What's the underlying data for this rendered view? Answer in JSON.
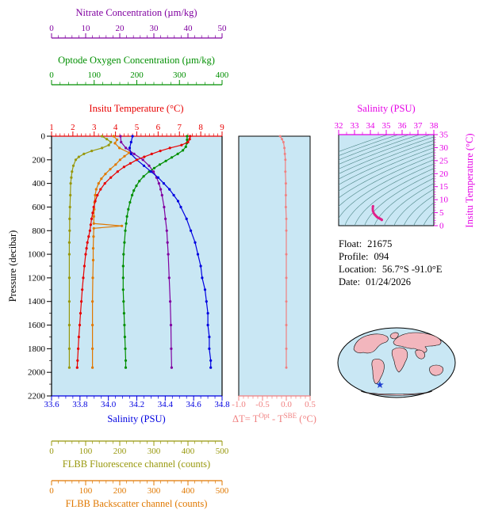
{
  "axes": {
    "nitrate": {
      "title": "Nitrate Concentration (µm/kg)",
      "color": "#8000a0",
      "min": 0,
      "max": 50,
      "ticks": [
        "0",
        "10",
        "20",
        "30",
        "40",
        "50"
      ]
    },
    "oxygen": {
      "title": "Optode Oxygen Concentration (µm/kg)",
      "color": "#008f00",
      "min": 0,
      "max": 400,
      "ticks": [
        "0",
        "100",
        "200",
        "300",
        "400"
      ]
    },
    "temperature": {
      "title": "Insitu Temperature (°C)",
      "color": "#e80000",
      "min": 1,
      "max": 9,
      "ticks": [
        "1",
        "2",
        "3",
        "4",
        "5",
        "6",
        "7",
        "8",
        "9"
      ]
    },
    "pressure": {
      "title": "Pressure (decibar)",
      "color": "#000000",
      "min": 0,
      "max": 2200,
      "ticks": [
        "0",
        "200",
        "400",
        "600",
        "800",
        "1000",
        "1200",
        "1400",
        "1600",
        "1800",
        "2000",
        "2200"
      ]
    },
    "salinity": {
      "title": "Salinity (PSU)",
      "color": "#0000e0",
      "min": 33.6,
      "max": 34.8,
      "ticks": [
        "33.6",
        "33.8",
        "34.0",
        "34.2",
        "34.4",
        "34.6",
        "34.8"
      ]
    },
    "fluorescence": {
      "title": "FLBB Fluorescence channel (counts)",
      "color": "#98980c",
      "min": 0,
      "max": 500,
      "ticks": [
        "0",
        "100",
        "200",
        "300",
        "400",
        "500"
      ]
    },
    "backscatter": {
      "title": "FLBB Backscatter channel (counts)",
      "color": "#e07800",
      "min": 0,
      "max": 500,
      "ticks": [
        "0",
        "100",
        "200",
        "300",
        "400",
        "500"
      ]
    },
    "delta_t": {
      "title_p1": "ΔT= T",
      "title_sup1": "Opt",
      "title_p2": " - T",
      "title_sup2": "SBE",
      "title_p3": " (°C)",
      "color": "#f08080",
      "min": -1.0,
      "max": 0.5,
      "ticks": [
        "-1.0",
        "-0.5",
        "0.0",
        "0.5"
      ]
    },
    "ts_salinity": {
      "title": "Salinity (PSU)",
      "color": "#e600e6",
      "min": 32,
      "max": 38,
      "ticks": [
        "32",
        "33",
        "34",
        "35",
        "36",
        "37",
        "38"
      ]
    },
    "ts_temperature": {
      "title": "Insitu Temperature (°C)",
      "color": "#e600e6",
      "min": 0,
      "max": 35,
      "ticks": [
        "0",
        "5",
        "10",
        "15",
        "20",
        "25",
        "30",
        "35"
      ]
    }
  },
  "info": {
    "float_label": "Float:",
    "float_value": "21675",
    "profile_label": "Profile:",
    "profile_value": "094",
    "location_label": "Location:",
    "location_value": "56.7°S -91.0°E",
    "date_label": "Date:",
    "date_value": "01/24/2026"
  },
  "map": {
    "star_color": "#2040d0",
    "land_color": "#f2b6bd",
    "ocean_color": "#c9e7f4",
    "outline_color": "#000000"
  },
  "chart_data": [
    {
      "type": "line",
      "title": "Profile plot: multiple variables vs pressure",
      "ylabel": "Pressure (decibar)",
      "ylim": [
        0,
        2200
      ],
      "plot_bg": "#c9e7f4",
      "y_axis": "pressure",
      "series": [
        {
          "name": "fluorescence",
          "axis": "fluorescence",
          "color": "#98980c",
          "points": [
            [
              0,
              148
            ],
            [
              25,
              162
            ],
            [
              50,
              174
            ],
            [
              75,
              168
            ],
            [
              100,
              148
            ],
            [
              125,
              118
            ],
            [
              150,
              95
            ],
            [
              175,
              80
            ],
            [
              200,
              71
            ],
            [
              250,
              64
            ],
            [
              300,
              60
            ],
            [
              350,
              58
            ],
            [
              400,
              56
            ],
            [
              500,
              55
            ],
            [
              600,
              54
            ],
            [
              700,
              53
            ],
            [
              800,
              53
            ],
            [
              900,
              52
            ],
            [
              1000,
              52
            ],
            [
              1200,
              52
            ],
            [
              1400,
              52
            ],
            [
              1600,
              52
            ],
            [
              1800,
              52
            ],
            [
              1960,
              52
            ]
          ]
        },
        {
          "name": "backscatter",
          "axis": "backscatter",
          "color": "#e07800",
          "points": [
            [
              0,
              182
            ],
            [
              30,
              192
            ],
            [
              60,
              186
            ],
            [
              100,
              199
            ],
            [
              140,
              228
            ],
            [
              170,
              214
            ],
            [
              200,
              201
            ],
            [
              240,
              188
            ],
            [
              280,
              172
            ],
            [
              320,
              158
            ],
            [
              360,
              146
            ],
            [
              400,
              138
            ],
            [
              450,
              131
            ],
            [
              500,
              128
            ],
            [
              560,
              126
            ],
            [
              620,
              125
            ],
            [
              680,
              124
            ],
            [
              740,
              124
            ],
            [
              760,
              206
            ],
            [
              780,
              124
            ],
            [
              850,
              123
            ],
            [
              950,
              122
            ],
            [
              1050,
              122
            ],
            [
              1200,
              121
            ],
            [
              1400,
              120
            ],
            [
              1600,
              120
            ],
            [
              1800,
              120
            ],
            [
              1960,
              120
            ]
          ]
        },
        {
          "name": "nitrate",
          "axis": "nitrate",
          "color": "#8000a0",
          "points": [
            [
              0,
              20.2
            ],
            [
              50,
              20.4
            ],
            [
              100,
              21.8
            ],
            [
              150,
              24.2
            ],
            [
              200,
              26.8
            ],
            [
              250,
              28.6
            ],
            [
              300,
              29.9
            ],
            [
              350,
              30.8
            ],
            [
              400,
              31.5
            ],
            [
              450,
              32.0
            ],
            [
              500,
              32.4
            ],
            [
              600,
              33.0
            ],
            [
              700,
              33.4
            ],
            [
              800,
              33.8
            ],
            [
              900,
              34.0
            ],
            [
              1000,
              34.2
            ],
            [
              1200,
              34.5
            ],
            [
              1400,
              34.8
            ],
            [
              1600,
              35.0
            ],
            [
              1800,
              35.1
            ],
            [
              1960,
              35.2
            ]
          ]
        },
        {
          "name": "oxygen",
          "axis": "oxygen",
          "color": "#008f00",
          "points": [
            [
              0,
              318
            ],
            [
              30,
              318
            ],
            [
              60,
              317
            ],
            [
              90,
              315
            ],
            [
              120,
              308
            ],
            [
              150,
              296
            ],
            [
              180,
              282
            ],
            [
              210,
              268
            ],
            [
              240,
              254
            ],
            [
              270,
              241
            ],
            [
              300,
              229
            ],
            [
              340,
              216
            ],
            [
              380,
              206
            ],
            [
              420,
              199
            ],
            [
              460,
              193
            ],
            [
              500,
              189
            ],
            [
              560,
              184
            ],
            [
              620,
              180
            ],
            [
              680,
              177
            ],
            [
              740,
              175
            ],
            [
              800,
              173
            ],
            [
              900,
              171
            ],
            [
              1000,
              169
            ],
            [
              1100,
              168
            ],
            [
              1200,
              168
            ],
            [
              1300,
              168
            ],
            [
              1400,
              169
            ],
            [
              1500,
              170
            ],
            [
              1600,
              171
            ],
            [
              1700,
              172
            ],
            [
              1800,
              173
            ],
            [
              1900,
              174
            ],
            [
              1960,
              174
            ]
          ]
        },
        {
          "name": "salinity",
          "axis": "salinity",
          "color": "#0000e0",
          "points": [
            [
              0,
              34.17
            ],
            [
              50,
              34.16
            ],
            [
              100,
              34.15
            ],
            [
              150,
              34.16
            ],
            [
              200,
              34.2
            ],
            [
              250,
              34.25
            ],
            [
              300,
              34.3
            ],
            [
              350,
              34.35
            ],
            [
              400,
              34.39
            ],
            [
              450,
              34.43
            ],
            [
              500,
              34.46
            ],
            [
              550,
              34.49
            ],
            [
              600,
              34.51
            ],
            [
              700,
              34.55
            ],
            [
              800,
              34.58
            ],
            [
              900,
              34.61
            ],
            [
              1000,
              34.63
            ],
            [
              1100,
              34.65
            ],
            [
              1200,
              34.66
            ],
            [
              1300,
              34.68
            ],
            [
              1400,
              34.69
            ],
            [
              1500,
              34.7
            ],
            [
              1600,
              34.7
            ],
            [
              1700,
              34.71
            ],
            [
              1800,
              34.71
            ],
            [
              1900,
              34.72
            ],
            [
              1960,
              34.72
            ]
          ]
        },
        {
          "name": "temperature",
          "axis": "temperature",
          "color": "#e80000",
          "points": [
            [
              0,
              7.5
            ],
            [
              25,
              7.48
            ],
            [
              50,
              7.4
            ],
            [
              75,
              7.1
            ],
            [
              100,
              6.55
            ],
            [
              125,
              6.1
            ],
            [
              150,
              5.7
            ],
            [
              175,
              5.35
            ],
            [
              200,
              5.0
            ],
            [
              230,
              4.7
            ],
            [
              260,
              4.4
            ],
            [
              300,
              4.1
            ],
            [
              350,
              3.78
            ],
            [
              400,
              3.5
            ],
            [
              450,
              3.3
            ],
            [
              500,
              3.15
            ],
            [
              550,
              3.05
            ],
            [
              600,
              2.98
            ],
            [
              650,
              2.93
            ],
            [
              700,
              2.88
            ],
            [
              750,
              2.84
            ],
            [
              800,
              2.8
            ],
            [
              850,
              2.74
            ],
            [
              900,
              2.68
            ],
            [
              950,
              2.64
            ],
            [
              1000,
              2.6
            ],
            [
              1100,
              2.54
            ],
            [
              1200,
              2.49
            ],
            [
              1300,
              2.44
            ],
            [
              1400,
              2.4
            ],
            [
              1500,
              2.36
            ],
            [
              1600,
              2.32
            ],
            [
              1700,
              2.28
            ],
            [
              1800,
              2.25
            ],
            [
              1900,
              2.22
            ],
            [
              1960,
              2.2
            ]
          ]
        }
      ]
    },
    {
      "type": "line",
      "title": "ΔT = T Optode - T SBE vs pressure",
      "xlim": [
        -1.0,
        0.5
      ],
      "ylim": [
        0,
        2200
      ],
      "x_axis": "delta_t",
      "y_axis": "pressure",
      "series": [
        {
          "name": "delta_t",
          "color": "#f08080",
          "points": [
            [
              0,
              -0.13
            ],
            [
              25,
              -0.09
            ],
            [
              50,
              -0.06
            ],
            [
              100,
              -0.04
            ],
            [
              150,
              -0.03
            ],
            [
              200,
              -0.02
            ],
            [
              300,
              -0.02
            ],
            [
              400,
              -0.01
            ],
            [
              500,
              -0.01
            ],
            [
              600,
              -0.01
            ],
            [
              700,
              0.0
            ],
            [
              800,
              0.0
            ],
            [
              1000,
              0.0
            ],
            [
              1200,
              0.0
            ],
            [
              1400,
              0.0
            ],
            [
              1600,
              0.0
            ],
            [
              1800,
              0.0
            ],
            [
              1960,
              0.0
            ]
          ]
        }
      ]
    },
    {
      "type": "line",
      "title": "T-S diagram with sigma-theta contours",
      "xlim": [
        32,
        38
      ],
      "ylim": [
        0,
        35
      ],
      "x_axis": "ts_salinity",
      "y_axis": "ts_temperature",
      "contour_color": "#4d8686",
      "sigma_theta_levels": [
        20,
        20.5,
        21,
        21.5,
        22,
        22.5,
        23,
        23.5,
        24,
        24.5,
        25,
        25.5,
        26,
        26.5,
        27,
        27.5,
        28,
        28.5,
        29,
        29.5,
        30
      ],
      "series": [
        {
          "name": "ts_profile",
          "color": "#e0218a",
          "points": [
            [
              34.17,
              7.5
            ],
            [
              34.16,
              7.4
            ],
            [
              34.15,
              6.55
            ],
            [
              34.16,
              5.7
            ],
            [
              34.2,
              5.0
            ],
            [
              34.25,
              4.45
            ],
            [
              34.3,
              4.1
            ],
            [
              34.35,
              3.78
            ],
            [
              34.39,
              3.5
            ],
            [
              34.43,
              3.3
            ],
            [
              34.46,
              3.15
            ],
            [
              34.51,
              2.98
            ],
            [
              34.55,
              2.88
            ],
            [
              34.58,
              2.8
            ],
            [
              34.61,
              2.68
            ],
            [
              34.63,
              2.6
            ],
            [
              34.66,
              2.49
            ],
            [
              34.68,
              2.44
            ],
            [
              34.69,
              2.4
            ],
            [
              34.7,
              2.36
            ],
            [
              34.7,
              2.32
            ],
            [
              34.71,
              2.28
            ],
            [
              34.71,
              2.25
            ],
            [
              34.72,
              2.22
            ],
            [
              34.72,
              2.2
            ]
          ]
        }
      ]
    }
  ]
}
